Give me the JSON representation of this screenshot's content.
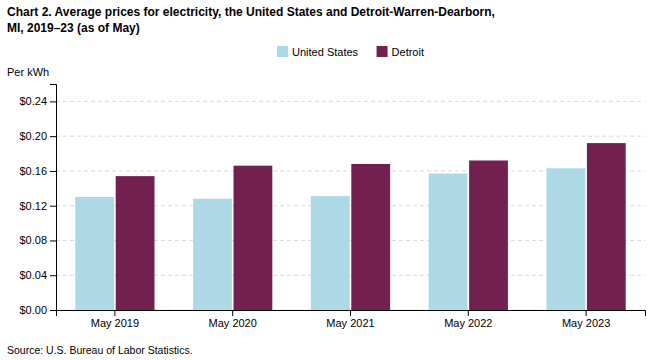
{
  "chart_data": {
    "type": "bar",
    "title": "Chart 2. Average prices for electricity, the United States and Detroit-Warren-Dearborn,\nMI, 2019–23 (as of May)",
    "ylabel": "Per kWh",
    "source": "Source: U.S. Bureau of Labor Statistics.",
    "categories": [
      "May 2019",
      "May 2020",
      "May 2021",
      "May 2022",
      "May 2023"
    ],
    "series": [
      {
        "name": "United States",
        "color": "#add8e6",
        "values": [
          0.13,
          0.128,
          0.131,
          0.157,
          0.163
        ]
      },
      {
        "name": "Detroit",
        "color": "#722050",
        "values": [
          0.154,
          0.166,
          0.168,
          0.172,
          0.192
        ]
      }
    ],
    "ylim": [
      0,
      0.26
    ],
    "yticks": [
      {
        "value": 0.0,
        "label": "$0.00"
      },
      {
        "value": 0.04,
        "label": "$0.04"
      },
      {
        "value": 0.08,
        "label": "$0.08"
      },
      {
        "value": 0.12,
        "label": "$0.12"
      },
      {
        "value": 0.16,
        "label": "$0.16"
      },
      {
        "value": 0.2,
        "label": "$0.20"
      },
      {
        "value": 0.24,
        "label": "$0.24"
      }
    ],
    "grid": true,
    "legend": "top"
  }
}
